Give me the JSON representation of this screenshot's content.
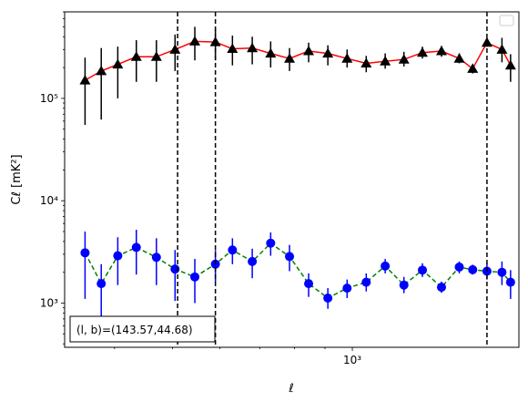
{
  "chart_data": {
    "type": "line",
    "xlabel": "ℓ",
    "ylabel": "Cℓ  [mK²]",
    "x_scale": "log",
    "y_scale": "log",
    "xlim": [
      330,
      1900
    ],
    "ylim": [
      370,
      700000
    ],
    "x_ticks": [
      {
        "value": 1000,
        "label": "10³"
      }
    ],
    "y_ticks": [
      {
        "value": 1000,
        "label": "10³"
      },
      {
        "value": 10000,
        "label": "10⁴"
      },
      {
        "value": 100000,
        "label": "10⁵"
      }
    ],
    "grid": false,
    "legend": "upper right (empty)",
    "annotation": "(l, b)=(143.57,44.68)",
    "vlines": [
      510,
      590,
      1680
    ],
    "series": [
      {
        "color": "#ff0000",
        "marker_color": "#000000",
        "marker": "triangle",
        "linestyle": "solid",
        "points": [
          {
            "x": 357,
            "y": 150000,
            "lo": 55000,
            "hi": 250000
          },
          {
            "x": 380,
            "y": 185000,
            "lo": 62000,
            "hi": 310000
          },
          {
            "x": 405,
            "y": 215000,
            "lo": 100000,
            "hi": 320000
          },
          {
            "x": 435,
            "y": 255000,
            "lo": 145000,
            "hi": 370000
          },
          {
            "x": 470,
            "y": 255000,
            "lo": 145000,
            "hi": 370000
          },
          {
            "x": 505,
            "y": 300000,
            "lo": 185000,
            "hi": 420000
          },
          {
            "x": 545,
            "y": 360000,
            "lo": 235000,
            "hi": 500000
          },
          {
            "x": 590,
            "y": 355000,
            "lo": 235000,
            "hi": 480000
          },
          {
            "x": 630,
            "y": 305000,
            "lo": 210000,
            "hi": 410000
          },
          {
            "x": 680,
            "y": 310000,
            "lo": 215000,
            "hi": 400000
          },
          {
            "x": 730,
            "y": 275000,
            "lo": 200000,
            "hi": 360000
          },
          {
            "x": 785,
            "y": 245000,
            "lo": 185000,
            "hi": 310000
          },
          {
            "x": 845,
            "y": 290000,
            "lo": 225000,
            "hi": 350000
          },
          {
            "x": 910,
            "y": 275000,
            "lo": 210000,
            "hi": 330000
          },
          {
            "x": 980,
            "y": 245000,
            "lo": 200000,
            "hi": 300000
          },
          {
            "x": 1055,
            "y": 220000,
            "lo": 180000,
            "hi": 260000
          },
          {
            "x": 1135,
            "y": 230000,
            "lo": 195000,
            "hi": 275000
          },
          {
            "x": 1220,
            "y": 240000,
            "lo": 205000,
            "hi": 285000
          },
          {
            "x": 1310,
            "y": 280000,
            "lo": 245000,
            "hi": 320000
          },
          {
            "x": 1410,
            "y": 290000,
            "lo": 255000,
            "hi": 325000
          },
          {
            "x": 1510,
            "y": 245000,
            "lo": 220000,
            "hi": 275000
          },
          {
            "x": 1590,
            "y": 195000,
            "lo": 175000,
            "hi": 215000
          },
          {
            "x": 1680,
            "y": 350000,
            "lo": 320000,
            "hi": 385000
          },
          {
            "x": 1780,
            "y": 300000,
            "lo": 225000,
            "hi": 390000
          },
          {
            "x": 1840,
            "y": 210000,
            "lo": 145000,
            "hi": 270000
          }
        ]
      },
      {
        "color": "#008000",
        "marker_color": "#0000ff",
        "marker": "circle",
        "linestyle": "dashed",
        "points": [
          {
            "x": 357,
            "y": 3100,
            "lo": 1100,
            "hi": 5000
          },
          {
            "x": 380,
            "y": 1550,
            "lo": 730,
            "hi": 2400
          },
          {
            "x": 405,
            "y": 2900,
            "lo": 1500,
            "hi": 4400
          },
          {
            "x": 435,
            "y": 3500,
            "lo": 1900,
            "hi": 5200
          },
          {
            "x": 470,
            "y": 2800,
            "lo": 1500,
            "hi": 4300
          },
          {
            "x": 505,
            "y": 2150,
            "lo": 1050,
            "hi": 3300
          },
          {
            "x": 545,
            "y": 1800,
            "lo": 1000,
            "hi": 2700
          },
          {
            "x": 590,
            "y": 2400,
            "lo": 1600,
            "hi": 3300
          },
          {
            "x": 630,
            "y": 3300,
            "lo": 2400,
            "hi": 4300
          },
          {
            "x": 680,
            "y": 2550,
            "lo": 1750,
            "hi": 3400
          },
          {
            "x": 730,
            "y": 3850,
            "lo": 2900,
            "hi": 4900
          },
          {
            "x": 785,
            "y": 2850,
            "lo": 2050,
            "hi": 3700
          },
          {
            "x": 845,
            "y": 1550,
            "lo": 1150,
            "hi": 1950
          },
          {
            "x": 910,
            "y": 1120,
            "lo": 880,
            "hi": 1400
          },
          {
            "x": 980,
            "y": 1400,
            "lo": 1120,
            "hi": 1700
          },
          {
            "x": 1055,
            "y": 1600,
            "lo": 1300,
            "hi": 1950
          },
          {
            "x": 1135,
            "y": 2300,
            "lo": 1950,
            "hi": 2700
          },
          {
            "x": 1220,
            "y": 1500,
            "lo": 1250,
            "hi": 1800
          },
          {
            "x": 1310,
            "y": 2100,
            "lo": 1800,
            "hi": 2450
          },
          {
            "x": 1410,
            "y": 1430,
            "lo": 1260,
            "hi": 1620
          },
          {
            "x": 1510,
            "y": 2250,
            "lo": 1950,
            "hi": 2550
          },
          {
            "x": 1590,
            "y": 2120,
            "lo": 1900,
            "hi": 2370
          },
          {
            "x": 1680,
            "y": 2050,
            "lo": 1700,
            "hi": 2450
          },
          {
            "x": 1780,
            "y": 2000,
            "lo": 1500,
            "hi": 2550
          },
          {
            "x": 1840,
            "y": 1600,
            "lo": 1100,
            "hi": 2100
          }
        ]
      }
    ]
  }
}
